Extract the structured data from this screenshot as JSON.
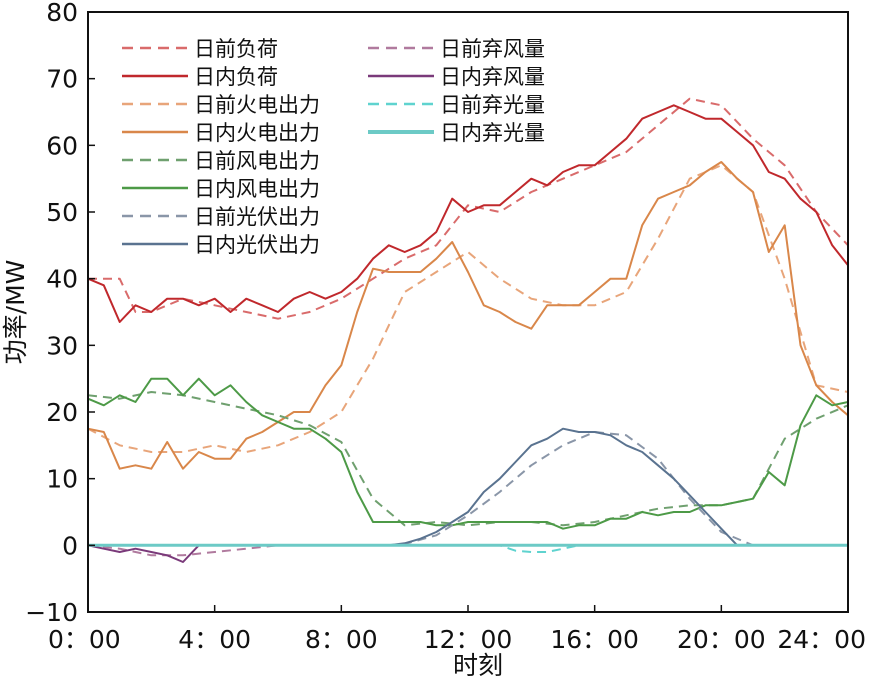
{
  "chart_data": {
    "type": "line",
    "xlabel": "时刻",
    "ylabel": "功率/MW",
    "xlim": [
      0,
      24
    ],
    "ylim": [
      -10,
      80
    ],
    "xticks": [
      0,
      4,
      8,
      12,
      16,
      20,
      24
    ],
    "xtick_labels": [
      "0：00",
      "4：00",
      "8：00",
      "12：00",
      "16：00",
      "20：00",
      "24：00"
    ],
    "yticks": [
      -10,
      0,
      10,
      20,
      30,
      40,
      50,
      60,
      70,
      80
    ],
    "ytick_labels": [
      "−10",
      "0",
      "10",
      "20",
      "30",
      "40",
      "50",
      "60",
      "70",
      "80"
    ],
    "grid": false,
    "legend_position": "top-left",
    "series": [
      {
        "name": "日前负荷",
        "color": "#d96b6b",
        "dash": true,
        "x": [
          0,
          1,
          1.5,
          2,
          3,
          4,
          5,
          6,
          7,
          8,
          9,
          10,
          11,
          12,
          13,
          14,
          15,
          16,
          17,
          18,
          19,
          20,
          21,
          22,
          23,
          24
        ],
        "y": [
          40,
          40,
          35,
          35,
          37,
          36,
          35,
          34,
          35,
          37,
          40,
          43,
          45,
          51,
          50,
          53,
          55,
          57,
          59,
          63,
          67,
          66,
          61,
          57,
          50,
          45
        ]
      },
      {
        "name": "日内负荷",
        "color": "#c0282c",
        "dash": false,
        "x": [
          0,
          0.5,
          1,
          1.5,
          2,
          2.5,
          3,
          3.5,
          4,
          4.5,
          5,
          5.5,
          6,
          6.5,
          7,
          7.5,
          8,
          8.5,
          9,
          9.5,
          10,
          10.5,
          11,
          11.5,
          12,
          12.5,
          13,
          13.5,
          14,
          14.5,
          15,
          15.5,
          16,
          16.5,
          17,
          17.5,
          18,
          18.5,
          19,
          19.5,
          20,
          20.5,
          21,
          21.5,
          22,
          22.5,
          23,
          23.5,
          24
        ],
        "y": [
          40,
          39,
          33.5,
          36,
          35,
          37,
          37,
          36,
          37,
          35,
          37,
          36,
          35,
          37,
          38,
          37,
          38,
          40,
          43,
          45,
          44,
          45,
          47,
          52,
          50,
          51,
          51,
          53,
          55,
          54,
          56,
          57,
          57,
          59,
          61,
          64,
          65,
          66,
          65,
          64,
          64,
          62,
          60,
          56,
          55,
          52,
          50,
          45,
          42
        ]
      },
      {
        "name": "日前火电出力",
        "color": "#e8a57a",
        "dash": true,
        "x": [
          0,
          1,
          2,
          3,
          4,
          5,
          6,
          7,
          8,
          9,
          10,
          11,
          12,
          13,
          14,
          15,
          16,
          17,
          18,
          19,
          20,
          21,
          22,
          23,
          24
        ],
        "y": [
          17.5,
          15,
          14,
          14,
          15,
          14,
          15,
          17,
          20,
          28,
          38,
          41,
          44,
          40,
          37,
          36,
          36,
          38,
          46,
          55,
          57,
          53,
          40,
          24,
          23
        ]
      },
      {
        "name": "日内火电出力",
        "color": "#d9874a",
        "dash": false,
        "x": [
          0,
          0.5,
          1,
          1.5,
          2,
          2.5,
          3,
          3.5,
          4,
          4.5,
          5,
          5.5,
          6,
          6.5,
          7,
          7.5,
          8,
          8.5,
          9,
          9.5,
          10,
          10.5,
          11,
          11.5,
          12,
          12.5,
          13,
          13.5,
          14,
          14.5,
          15,
          15.5,
          16,
          16.5,
          17,
          17.5,
          18,
          18.5,
          19,
          19.5,
          20,
          20.5,
          21,
          21.5,
          22,
          22.5,
          23,
          23.5,
          24
        ],
        "y": [
          17.5,
          17,
          11.5,
          12,
          11.5,
          15.5,
          11.5,
          14,
          13,
          13,
          16,
          17,
          18.5,
          20,
          20,
          24,
          27,
          35,
          41.5,
          41,
          41,
          41,
          43,
          45.5,
          41,
          36,
          35,
          33.5,
          32.5,
          36,
          36,
          36,
          38,
          40,
          40,
          48,
          52,
          53,
          54,
          56,
          57.5,
          55,
          53,
          44,
          48,
          30,
          24,
          21.5,
          19.5
        ]
      },
      {
        "name": "日前风电出力",
        "color": "#6fa06f",
        "dash": true,
        "x": [
          0,
          1,
          2,
          3,
          4,
          5,
          6,
          7,
          8,
          9,
          10,
          11,
          12,
          13,
          14,
          15,
          16,
          17,
          18,
          19,
          20,
          21,
          22,
          23,
          24
        ],
        "y": [
          22.5,
          22,
          23,
          22.5,
          21.5,
          20.5,
          19.5,
          18,
          15.5,
          7,
          3,
          3.5,
          3,
          3.5,
          3.5,
          3,
          3.5,
          4.5,
          5.5,
          6,
          6,
          7,
          16,
          19,
          21
        ]
      },
      {
        "name": "日内风电出力",
        "color": "#4d9a47",
        "dash": false,
        "x": [
          0,
          0.5,
          1,
          1.5,
          2,
          2.5,
          3,
          3.5,
          4,
          4.5,
          5,
          5.5,
          6,
          6.5,
          7,
          7.5,
          8,
          8.5,
          9,
          9.5,
          10,
          10.5,
          11,
          11.5,
          12,
          12.5,
          13,
          13.5,
          14,
          14.5,
          15,
          15.5,
          16,
          16.5,
          17,
          17.5,
          18,
          18.5,
          19,
          19.5,
          20,
          20.5,
          21,
          21.5,
          22,
          22.5,
          23,
          23.5,
          24
        ],
        "y": [
          22,
          21,
          22.5,
          21.5,
          25,
          25,
          22.5,
          25,
          22.5,
          24,
          21.5,
          19.5,
          18.5,
          17.5,
          17.5,
          16,
          14,
          8,
          3.5,
          3.5,
          3.5,
          3.5,
          3,
          3,
          3.5,
          3.5,
          3.5,
          3.5,
          3.5,
          3.5,
          2.5,
          3,
          3,
          4,
          4,
          5,
          4.5,
          5,
          5,
          6,
          6,
          6.5,
          7,
          11,
          9,
          18,
          22.5,
          21,
          21.5
        ]
      },
      {
        "name": "日前光伏出力",
        "color": "#8a96a8",
        "dash": true,
        "x": [
          0,
          9.5,
          10,
          11,
          12,
          13,
          14,
          15,
          16,
          17,
          18,
          19,
          20,
          21,
          24
        ],
        "y": [
          0,
          0,
          0.2,
          1.5,
          4.5,
          8,
          12,
          15,
          17,
          16.5,
          13,
          7,
          2,
          0,
          0
        ]
      },
      {
        "name": "日内光伏出力",
        "color": "#5a7390",
        "dash": false,
        "x": [
          0,
          9.5,
          10,
          10.5,
          11,
          11.5,
          12,
          12.5,
          13,
          13.5,
          14,
          14.5,
          15,
          15.5,
          16,
          16.5,
          17,
          17.5,
          18,
          18.5,
          19,
          19.5,
          20,
          20.5,
          24
        ],
        "y": [
          0,
          0,
          0.3,
          1,
          2,
          3.5,
          5,
          8,
          10,
          12.5,
          15,
          16,
          17.5,
          17,
          17,
          16.5,
          15,
          14,
          12,
          10,
          7.5,
          5,
          2.5,
          0,
          0
        ]
      },
      {
        "name": "日前弃风量",
        "color": "#b07a9e",
        "dash": true,
        "x": [
          0,
          1,
          1.5,
          2,
          2.5,
          3,
          4,
          5,
          6,
          24
        ],
        "y": [
          0,
          -0.5,
          -1,
          -1.5,
          -1.5,
          -1.5,
          -1,
          -0.5,
          0,
          0
        ]
      },
      {
        "name": "日内弃风量",
        "color": "#7a3a7a",
        "dash": false,
        "x": [
          0,
          0.5,
          1,
          1.5,
          2,
          2.5,
          3,
          3.5,
          4,
          24
        ],
        "y": [
          0,
          -0.5,
          -1,
          -0.5,
          -1,
          -1.5,
          -2.5,
          0,
          0,
          0
        ]
      },
      {
        "name": "日前弃光量",
        "color": "#5fd3cf",
        "dash": true,
        "x": [
          0,
          13,
          13.5,
          14,
          14.5,
          15,
          15.5,
          24
        ],
        "y": [
          0,
          0,
          -0.8,
          -1,
          -1,
          -0.5,
          0,
          0
        ]
      },
      {
        "name": "日内弃光量",
        "color": "#6ccac6",
        "dash": false,
        "x": [
          0,
          24
        ],
        "y": [
          0,
          0
        ]
      }
    ]
  }
}
